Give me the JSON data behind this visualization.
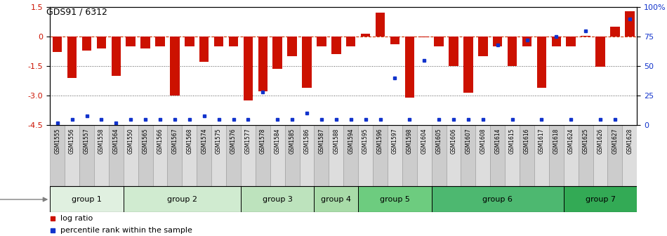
{
  "title": "GDS91 / 6312",
  "samples": [
    "GSM1555",
    "GSM1556",
    "GSM1557",
    "GSM1558",
    "GSM1564",
    "GSM1550",
    "GSM1565",
    "GSM1566",
    "GSM1567",
    "GSM1568",
    "GSM1574",
    "GSM1575",
    "GSM1576",
    "GSM1577",
    "GSM1578",
    "GSM1584",
    "GSM1585",
    "GSM1586",
    "GSM1587",
    "GSM1588",
    "GSM1594",
    "GSM1595",
    "GSM1596",
    "GSM1597",
    "GSM1598",
    "GSM1604",
    "GSM1605",
    "GSM1606",
    "GSM1607",
    "GSM1608",
    "GSM1614",
    "GSM1615",
    "GSM1616",
    "GSM1617",
    "GSM1618",
    "GSM1624",
    "GSM1625",
    "GSM1626",
    "GSM1627",
    "GSM1628"
  ],
  "log_ratios": [
    -0.8,
    -2.1,
    -0.7,
    -0.6,
    -2.0,
    -0.5,
    -0.6,
    -0.5,
    -3.0,
    -0.5,
    -1.3,
    -0.5,
    -0.5,
    -3.25,
    -2.8,
    -1.65,
    -1.0,
    -2.6,
    -0.5,
    -0.9,
    -0.5,
    0.15,
    1.2,
    -0.4,
    -3.1,
    -0.05,
    -0.5,
    -1.5,
    -2.85,
    -1.0,
    -0.5,
    -1.5,
    -0.5,
    -2.6,
    -0.5,
    -0.5,
    0.05,
    -1.55,
    0.5,
    1.3
  ],
  "percentile_ranks": [
    2,
    5,
    8,
    5,
    2,
    5,
    5,
    5,
    5,
    5,
    8,
    5,
    5,
    5,
    28,
    5,
    5,
    10,
    5,
    5,
    5,
    5,
    5,
    40,
    5,
    55,
    5,
    5,
    5,
    5,
    68,
    5,
    72,
    5,
    75,
    5,
    80,
    5,
    5,
    90
  ],
  "groups": [
    {
      "name": "group 1",
      "start": 0,
      "end": 5,
      "color": "#e0f0e0"
    },
    {
      "name": "group 2",
      "start": 5,
      "end": 13,
      "color": "#d0ebd0"
    },
    {
      "name": "group 3",
      "start": 13,
      "end": 18,
      "color": "#bde3bd"
    },
    {
      "name": "group 4",
      "start": 18,
      "end": 21,
      "color": "#a8dba8"
    },
    {
      "name": "group 5",
      "start": 21,
      "end": 26,
      "color": "#6dcc7f"
    },
    {
      "name": "group 6",
      "start": 26,
      "end": 35,
      "color": "#4db870"
    },
    {
      "name": "group 7",
      "start": 35,
      "end": 40,
      "color": "#33aa55"
    }
  ],
  "bar_color": "#cc1100",
  "dot_color": "#1133cc",
  "zero_line_color": "#cc3300",
  "dotted_line_color": "#555555",
  "ylim_left": [
    -4.5,
    1.5
  ],
  "ylim_right": [
    0,
    100
  ],
  "yticks_left": [
    1.5,
    0,
    -1.5,
    -3.0,
    -4.5
  ],
  "yticks_right": [
    100,
    75,
    50,
    25,
    0
  ],
  "background_color": "#ffffff",
  "label_bg_color": "#d8d8d8",
  "label_line_color": "#aaaaaa"
}
